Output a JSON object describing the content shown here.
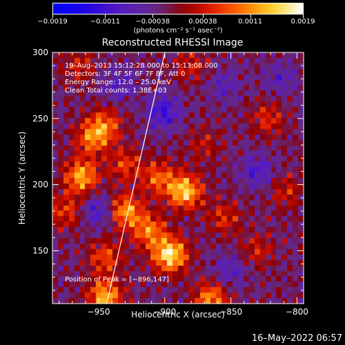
{
  "chart_data": {
    "type": "heatmap",
    "title": "Reconstructed RHESSI Image",
    "xlabel": "Heliocentric X (arcsec)",
    "ylabel": "Heliocentric Y (arcsec)",
    "xlim": [
      -985,
      -795
    ],
    "ylim": [
      110,
      300
    ],
    "xticks": [
      -950,
      -900,
      -850,
      -800
    ],
    "yticks": [
      150,
      200,
      250,
      300
    ],
    "xtick_labels": [
      "−950",
      "−900",
      "−850",
      "−800"
    ],
    "ytick_labels": [
      "150",
      "200",
      "250",
      "300"
    ],
    "colorbar": {
      "range": [
        -0.0019,
        0.0019
      ],
      "ticks": [
        -0.0019,
        -0.0011,
        -0.00038,
        0.00038,
        0.0011,
        0.0019
      ],
      "tick_labels": [
        "−0.0019",
        "−0.0011",
        "−0.00038",
        "0.00038",
        "0.0011",
        "0.0019"
      ],
      "unit_label": "(photons cm⁻² s⁻¹ asec⁻²)"
    },
    "annotations": [
      "19–Aug–2013 15:12:28.000 to 15:13:08.000",
      "Detectors: 3F 4F 5F 6F 7F 8F, Att 0",
      "Energy Range: 12.0 – 25.0 keV",
      "Clean     Total counts: 1.38E+03"
    ],
    "peak_label": "Position of Peak = [−896,147]",
    "peak": [
      -896,
      147
    ],
    "limb_line": [
      [
        -944,
        110
      ],
      [
        -900,
        300
      ]
    ],
    "hot_spots": [
      {
        "x": -963,
        "y": 206,
        "v": 0.0015
      },
      {
        "x": -955,
        "y": 235,
        "v": 0.0011
      },
      {
        "x": -945,
        "y": 245,
        "v": 0.001
      },
      {
        "x": -930,
        "y": 180,
        "v": 0.0014
      },
      {
        "x": -912,
        "y": 165,
        "v": 0.0012
      },
      {
        "x": -896,
        "y": 147,
        "v": 0.0019
      },
      {
        "x": -885,
        "y": 195,
        "v": 0.0017
      },
      {
        "x": -905,
        "y": 205,
        "v": 0.001
      },
      {
        "x": -945,
        "y": 115,
        "v": 0.0015
      },
      {
        "x": -865,
        "y": 113,
        "v": 0.0013
      },
      {
        "x": -945,
        "y": 145,
        "v": 0.0009
      },
      {
        "x": -855,
        "y": 175,
        "v": 0.0007
      },
      {
        "x": -880,
        "y": 290,
        "v": 0.0006
      },
      {
        "x": -965,
        "y": 290,
        "v": 0.0006
      },
      {
        "x": -822,
        "y": 250,
        "v": 0.0007
      },
      {
        "x": -808,
        "y": 195,
        "v": 0.0006
      },
      {
        "x": -830,
        "y": 150,
        "v": 0.0006
      },
      {
        "x": -975,
        "y": 180,
        "v": 0.0008
      },
      {
        "x": -930,
        "y": 215,
        "v": 0.0008
      },
      {
        "x": -870,
        "y": 230,
        "v": 0.0005
      }
    ],
    "cold_spots": [
      {
        "x": -901,
        "y": 255,
        "v": -0.0009
      },
      {
        "x": -950,
        "y": 180,
        "v": -0.0008
      },
      {
        "x": -830,
        "y": 210,
        "v": -0.0007
      },
      {
        "x": -935,
        "y": 275,
        "v": -0.0006
      },
      {
        "x": -855,
        "y": 275,
        "v": -0.0005
      },
      {
        "x": -850,
        "y": 135,
        "v": -0.0006
      },
      {
        "x": -812,
        "y": 280,
        "v": -0.0005
      }
    ]
  },
  "timestamp": "16–May–2022 06:57"
}
